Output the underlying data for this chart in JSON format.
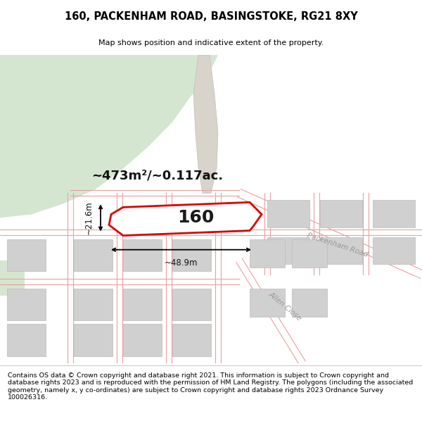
{
  "title": "160, PACKENHAM ROAD, BASINGSTOKE, RG21 8XY",
  "subtitle": "Map shows position and indicative extent of the property.",
  "area_text": "~473m²/~0.117ac.",
  "number_label": "160",
  "width_label": "~48.9m",
  "height_label": "~21.6m",
  "road_label_1": "Packenham Road",
  "road_label_2": "Allen Close",
  "footer_text": "Contains OS data © Crown copyright and database right 2021. This information is subject to Crown copyright and database rights 2023 and is reproduced with the permission of HM Land Registry. The polygons (including the associated geometry, namely x, y co-ordinates) are subject to Crown copyright and database rights 2023 Ordnance Survey 100026316.",
  "map_bg": "#f7f5f2",
  "green_color": "#d4e6d0",
  "building_color": "#d0d0d0",
  "building_edge": "#c0b8b8",
  "road_line_color": "#e8a0a0",
  "highlight_color": "#dd0000",
  "highlight_fill": "#ffffff",
  "title_color": "#000000",
  "footer_color": "#000000",
  "path_color": "#d8d4cc",
  "white": "#ffffff"
}
